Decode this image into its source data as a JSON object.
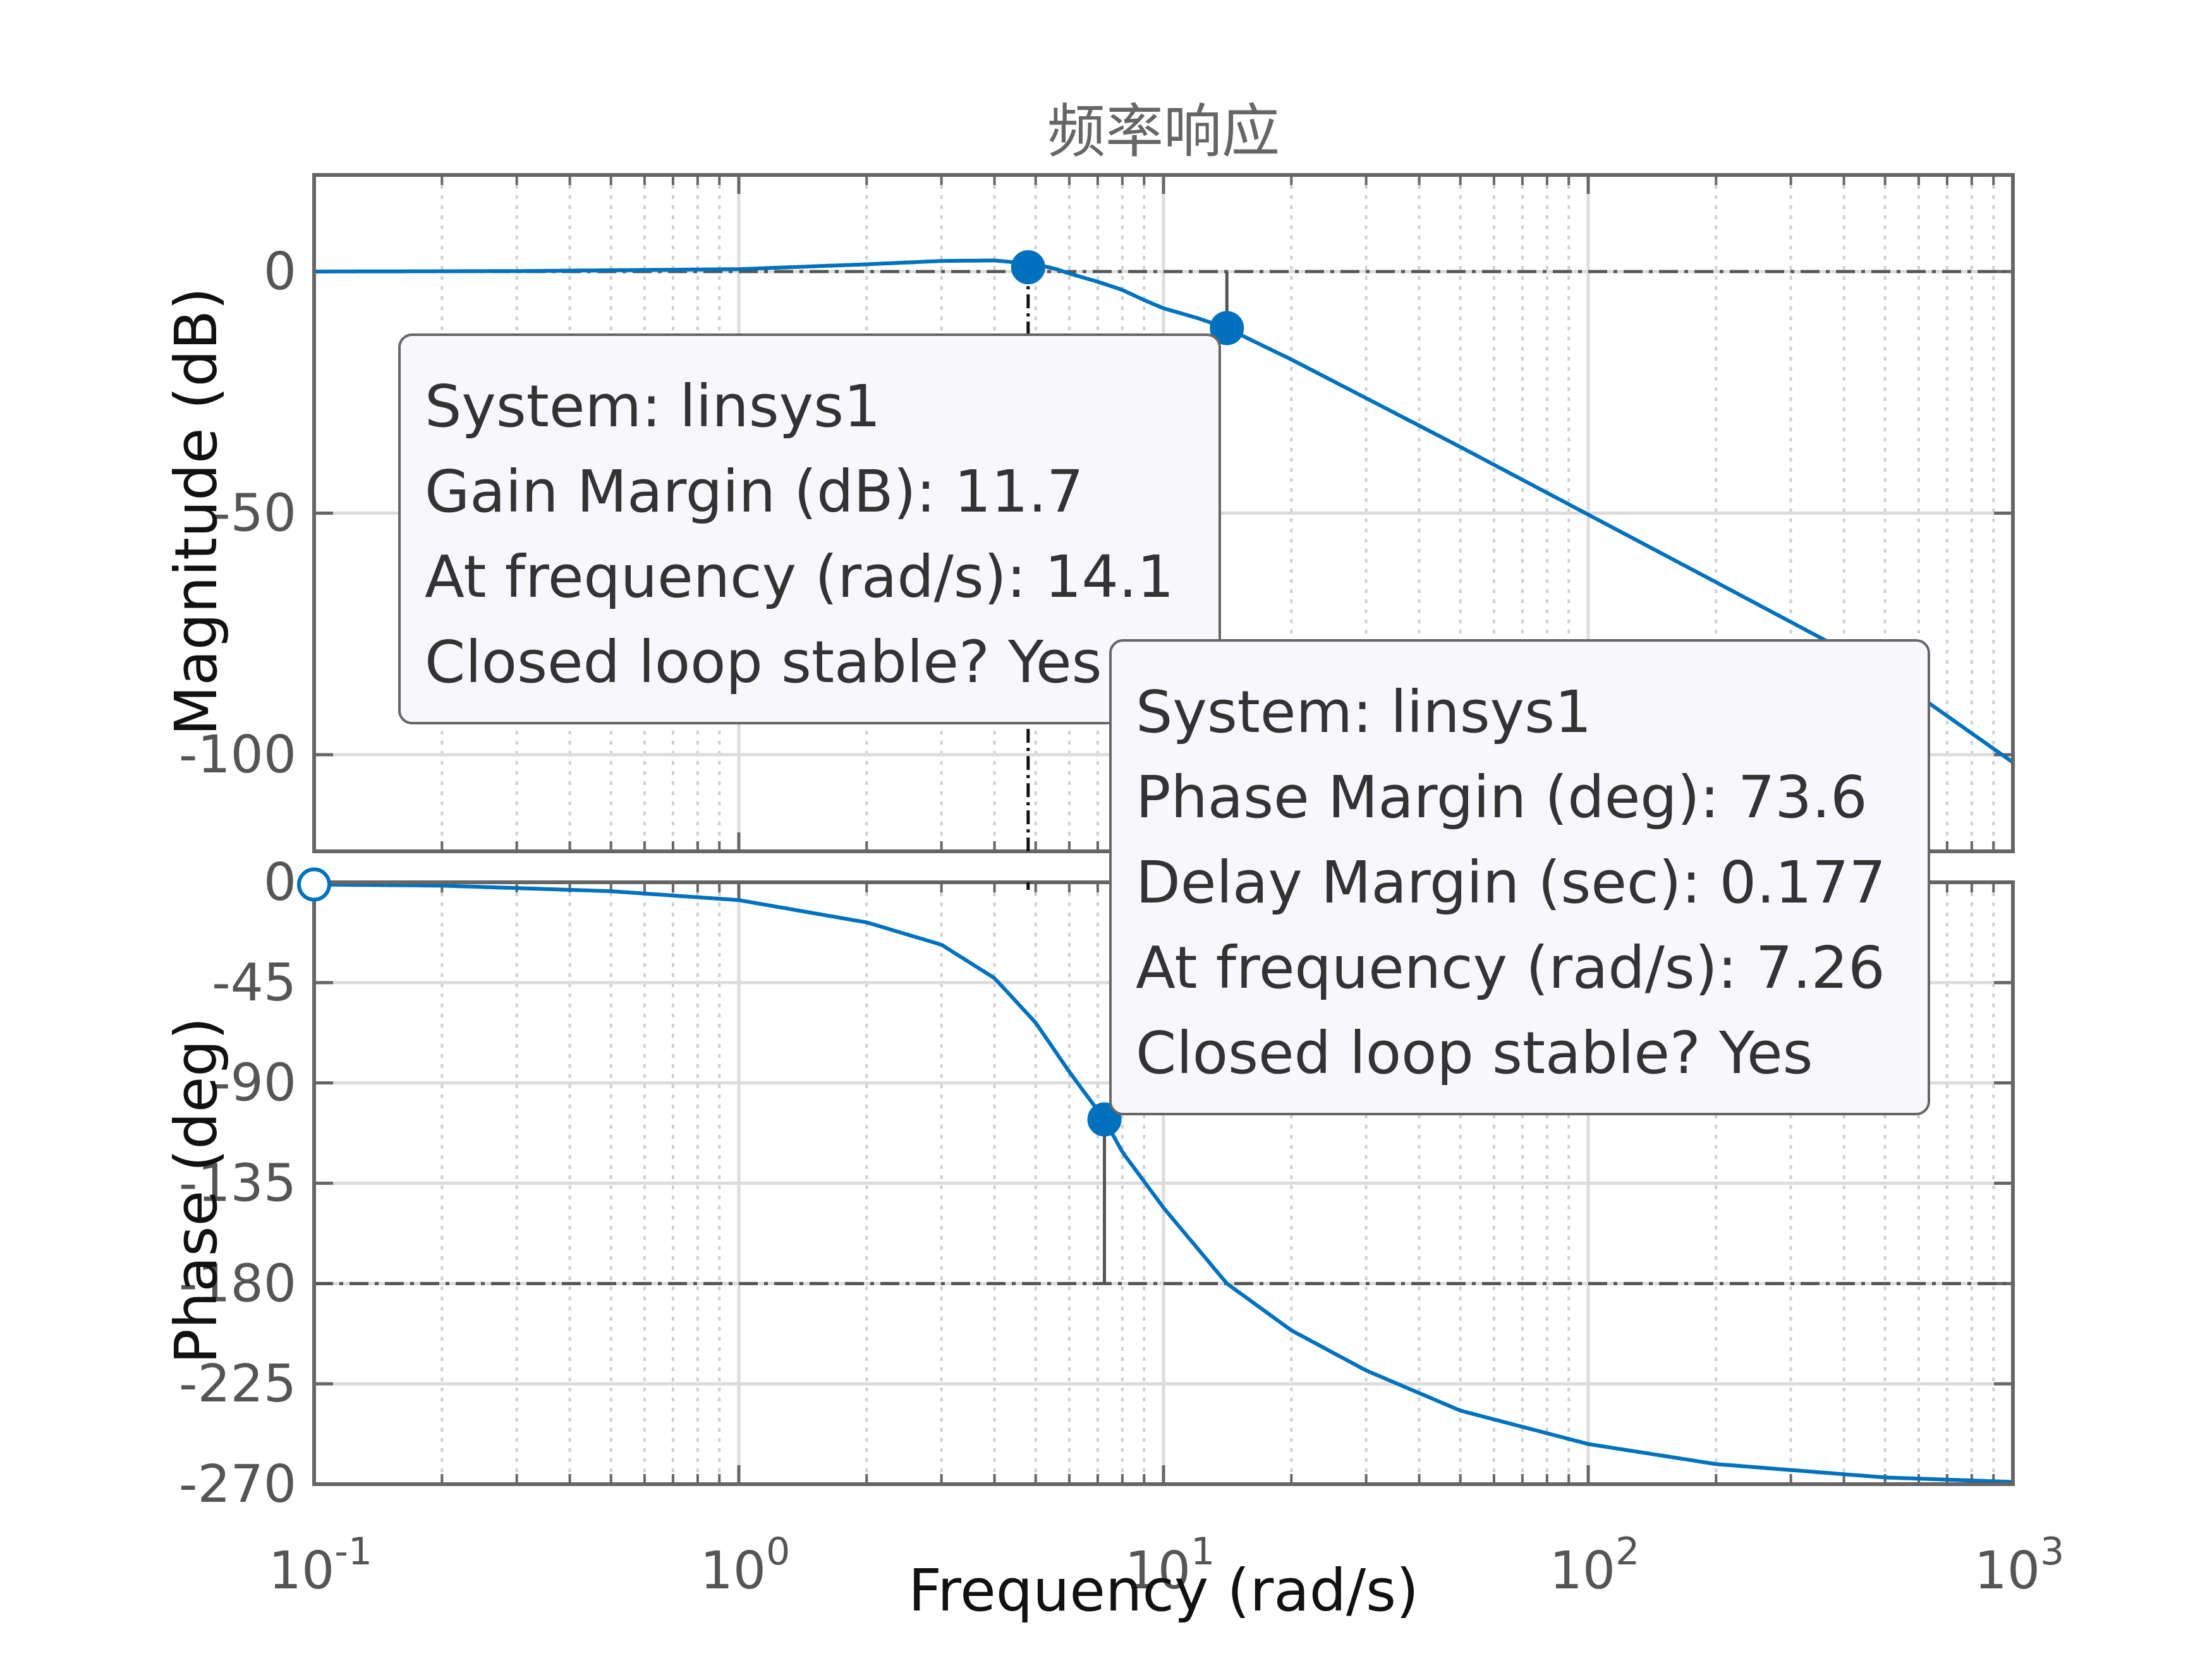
{
  "title": "频率响应",
  "xlabel": "Frequency  (rad/s)",
  "colors": {
    "line": "#0072BD",
    "axes": "#666666",
    "grid_major": "#dcdcdc",
    "grid_minor": "#d0d0d0",
    "tooltip_bg": "#f8f8fc",
    "tooltip_border": "#666666"
  },
  "chart_data": [
    {
      "type": "line",
      "name": "magnitude",
      "ylabel": "Magnitude (dB)",
      "xscale": "log",
      "xlim": [
        0.1,
        1000
      ],
      "ylim": [
        -120,
        20
      ],
      "yticks": [
        0,
        -50,
        -100
      ],
      "yticklabels": [
        "0",
        "-50",
        "-100"
      ],
      "grid": true,
      "x": [
        0.1,
        0.3,
        1,
        2,
        3,
        4,
        5,
        5.6,
        6,
        7,
        8,
        9,
        10,
        12,
        14.1,
        17,
        20,
        30,
        50,
        100,
        200,
        500,
        1000
      ],
      "y": [
        0,
        0.1,
        0.5,
        1.5,
        2.2,
        2.3,
        1.5,
        0.5,
        -0.4,
        -2.1,
        -3.8,
        -5.9,
        -7.6,
        -9.6,
        -11.7,
        -15.2,
        -18.2,
        -26.2,
        -36.3,
        -50.3,
        -64.3,
        -82.9,
        -101.6
      ],
      "markers": [
        {
          "x": 4.8,
          "y": 0.9,
          "style": "filled"
        },
        {
          "x": 14.1,
          "y": -11.7,
          "style": "filled"
        }
      ],
      "reference_line": {
        "y": 0,
        "style": "dash-dot"
      }
    },
    {
      "type": "line",
      "name": "phase",
      "ylabel": "Phase (deg)",
      "xscale": "log",
      "xlim": [
        0.1,
        1000
      ],
      "ylim": [
        -270,
        0
      ],
      "yticks": [
        0,
        -45,
        -90,
        -135,
        -180,
        -225,
        -270
      ],
      "yticklabels": [
        "0",
        "-45",
        "-90",
        "-135",
        "-180",
        "-225",
        "-270"
      ],
      "grid": true,
      "x": [
        0.1,
        0.2,
        0.5,
        1,
        2,
        3,
        4,
        5,
        6,
        7.26,
        8,
        10,
        14.1,
        20,
        30,
        50,
        100,
        200,
        500,
        1000
      ],
      "y": [
        -1,
        -1.5,
        -4,
        -8,
        -18,
        -28,
        -43,
        -63,
        -85,
        -106.4,
        -121,
        -146,
        -180,
        -201,
        -219,
        -237,
        -252,
        -261,
        -267,
        -269
      ],
      "markers": [
        {
          "x": 0.1,
          "y": -1,
          "style": "open"
        },
        {
          "x": 7.26,
          "y": -106.4,
          "style": "filled"
        }
      ],
      "reference_line": {
        "y": -180,
        "style": "dash-dot"
      }
    }
  ],
  "xticks": [
    {
      "base": "10",
      "exp": "-1"
    },
    {
      "base": "10",
      "exp": "0"
    },
    {
      "base": "10",
      "exp": "1"
    },
    {
      "base": "10",
      "exp": "2"
    },
    {
      "base": "10",
      "exp": "3"
    }
  ],
  "tooltips": {
    "gain": [
      "System: linsys1",
      "Gain Margin (dB): 11.7",
      "At frequency (rad/s): 14.1",
      "Closed loop stable? Yes"
    ],
    "phase": [
      "System: linsys1",
      "Phase Margin (deg): 73.6",
      "Delay Margin (sec): 0.177",
      "At frequency (rad/s): 7.26",
      "Closed loop stable? Yes"
    ]
  }
}
